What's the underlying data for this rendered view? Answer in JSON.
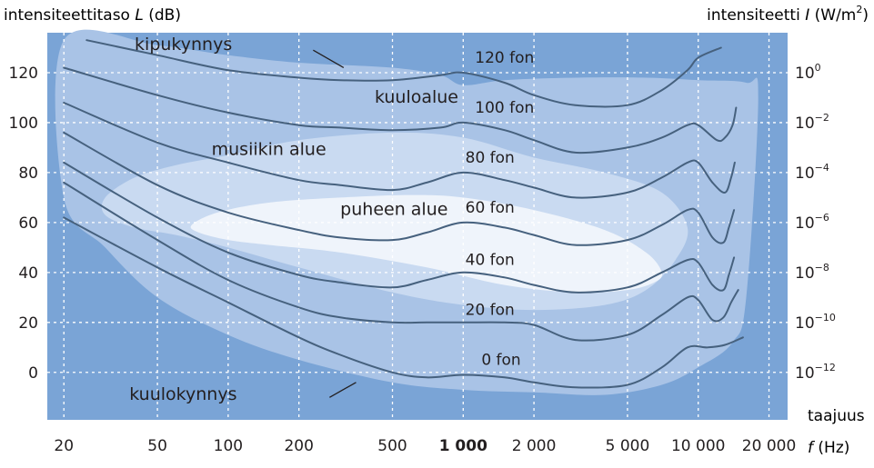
{
  "chart_data": {
    "type": "line",
    "left_axis_title": {
      "prefix": "intensiteettitaso ",
      "symbol": "L",
      "unit": " (dB)"
    },
    "right_axis_title": {
      "prefix": "intensiteetti ",
      "symbol": "I",
      "unit_open": " (W/m",
      "unit_exp": "2",
      "unit_close": ")"
    },
    "x_axis_title": {
      "line1": "taajuus",
      "symbol": "f",
      "unit": " (Hz)"
    },
    "x_scale": "log",
    "xlim": [
      17,
      24000
    ],
    "ylim": [
      -19,
      136
    ],
    "grid": true,
    "x_ticks": [
      {
        "value": 20,
        "label": "20"
      },
      {
        "value": 50,
        "label": "50"
      },
      {
        "value": 100,
        "label": "100"
      },
      {
        "value": 200,
        "label": "200"
      },
      {
        "value": 500,
        "label": "500"
      },
      {
        "value": 1000,
        "label": "1 000",
        "bold": true
      },
      {
        "value": 2000,
        "label": "2 000"
      },
      {
        "value": 5000,
        "label": "5 000"
      },
      {
        "value": 10000,
        "label": "10 000"
      },
      {
        "value": 20000,
        "label": "20 000"
      }
    ],
    "y_ticks": [
      {
        "value": 0,
        "label": "0"
      },
      {
        "value": 20,
        "label": "20"
      },
      {
        "value": 40,
        "label": "40"
      },
      {
        "value": 60,
        "label": "60"
      },
      {
        "value": 80,
        "label": "80"
      },
      {
        "value": 100,
        "label": "100"
      },
      {
        "value": 120,
        "label": "120"
      }
    ],
    "right_ticks": [
      {
        "value": 120,
        "base": "10",
        "exp": "0"
      },
      {
        "value": 100,
        "base": "10",
        "exp": "−2"
      },
      {
        "value": 80,
        "base": "10",
        "exp": "−4"
      },
      {
        "value": 60,
        "base": "10",
        "exp": "−6"
      },
      {
        "value": 40,
        "base": "10",
        "exp": "−8"
      },
      {
        "value": 20,
        "base": "10",
        "exp": "−10"
      },
      {
        "value": 0,
        "base": "10",
        "exp": "−12"
      }
    ],
    "regions": [
      {
        "label": "kuuloalue",
        "color": "#a9c3e6",
        "label_at": [
          420,
          108
        ],
        "boundary": [
          [
            20,
            133
          ],
          [
            50,
            131
          ],
          [
            100,
            127
          ],
          [
            200,
            124
          ],
          [
            500,
            122
          ],
          [
            800,
            119
          ],
          [
            1000,
            115
          ],
          [
            1500,
            117
          ],
          [
            3000,
            118
          ],
          [
            6000,
            118
          ],
          [
            10000,
            117
          ],
          [
            16000,
            116
          ],
          [
            18000,
            110
          ],
          [
            16000,
            30
          ],
          [
            14000,
            12
          ],
          [
            10000,
            2
          ],
          [
            7000,
            -5
          ],
          [
            4000,
            -9
          ],
          [
            2000,
            -8
          ],
          [
            1000,
            -7
          ],
          [
            500,
            -4
          ],
          [
            200,
            5
          ],
          [
            100,
            15
          ],
          [
            50,
            30
          ],
          [
            30,
            50
          ],
          [
            20,
            70
          ]
        ]
      },
      {
        "label": "musiikin alue",
        "color": "#c9daf1",
        "label_at": [
          85,
          87
        ],
        "boundary": [
          [
            30,
            70
          ],
          [
            40,
            78
          ],
          [
            60,
            83
          ],
          [
            100,
            87
          ],
          [
            200,
            93
          ],
          [
            500,
            96
          ],
          [
            1000,
            94
          ],
          [
            2000,
            86
          ],
          [
            4000,
            80
          ],
          [
            7000,
            72
          ],
          [
            9000,
            58
          ],
          [
            8000,
            45
          ],
          [
            6000,
            33
          ],
          [
            4000,
            27
          ],
          [
            2000,
            25
          ],
          [
            1000,
            27
          ],
          [
            500,
            32
          ],
          [
            200,
            42
          ],
          [
            100,
            50
          ],
          [
            60,
            55
          ],
          [
            40,
            58
          ],
          [
            30,
            63
          ]
        ]
      },
      {
        "label": "puheen alue",
        "color": "#eff4fb",
        "label_at": [
          300,
          63
        ],
        "boundary": [
          [
            70,
            59
          ],
          [
            90,
            64
          ],
          [
            150,
            68
          ],
          [
            300,
            70
          ],
          [
            600,
            71
          ],
          [
            1000,
            70
          ],
          [
            2000,
            65
          ],
          [
            4000,
            57
          ],
          [
            6000,
            48
          ],
          [
            7000,
            40
          ],
          [
            6500,
            36
          ],
          [
            5000,
            33
          ],
          [
            3000,
            32
          ],
          [
            1500,
            35
          ],
          [
            700,
            42
          ],
          [
            300,
            48
          ],
          [
            150,
            51
          ],
          [
            100,
            53
          ],
          [
            75,
            56
          ]
        ]
      }
    ],
    "series": [
      {
        "name": "120 fon",
        "label_at": [
          1500,
          124
        ],
        "points": [
          [
            25,
            133
          ],
          [
            50,
            127
          ],
          [
            100,
            121
          ],
          [
            200,
            118
          ],
          [
            300,
            117
          ],
          [
            500,
            117
          ],
          [
            800,
            119
          ],
          [
            1000,
            120
          ],
          [
            1500,
            116
          ],
          [
            2000,
            111
          ],
          [
            3000,
            107
          ],
          [
            5000,
            107
          ],
          [
            7000,
            113
          ],
          [
            9000,
            121
          ],
          [
            10000,
            126
          ],
          [
            12500,
            130
          ]
        ]
      },
      {
        "name": "100 fon",
        "label_at": [
          1500,
          104
        ],
        "points": [
          [
            20,
            122
          ],
          [
            50,
            111
          ],
          [
            100,
            104
          ],
          [
            200,
            99
          ],
          [
            300,
            98
          ],
          [
            500,
            97
          ],
          [
            800,
            98
          ],
          [
            1000,
            100
          ],
          [
            1500,
            97
          ],
          [
            2000,
            93
          ],
          [
            3000,
            88
          ],
          [
            5000,
            90
          ],
          [
            7000,
            94
          ],
          [
            9000,
            99
          ],
          [
            10000,
            99
          ],
          [
            12000,
            93
          ],
          [
            13000,
            94
          ],
          [
            14000,
            99
          ],
          [
            14500,
            106
          ]
        ]
      },
      {
        "name": "80 fon",
        "label_at": [
          1300,
          84
        ],
        "points": [
          [
            20,
            108
          ],
          [
            50,
            92
          ],
          [
            100,
            84
          ],
          [
            200,
            77
          ],
          [
            300,
            75
          ],
          [
            500,
            73
          ],
          [
            700,
            76
          ],
          [
            1000,
            80
          ],
          [
            1500,
            77
          ],
          [
            2000,
            74
          ],
          [
            3000,
            70
          ],
          [
            5000,
            72
          ],
          [
            7000,
            78
          ],
          [
            9000,
            84
          ],
          [
            10000,
            84
          ],
          [
            11500,
            76
          ],
          [
            13000,
            72
          ],
          [
            13800,
            78
          ],
          [
            14300,
            84
          ]
        ]
      },
      {
        "name": "60 fon",
        "label_at": [
          1300,
          64
        ],
        "points": [
          [
            20,
            96
          ],
          [
            50,
            75
          ],
          [
            100,
            64
          ],
          [
            200,
            57
          ],
          [
            300,
            54
          ],
          [
            500,
            53
          ],
          [
            700,
            56
          ],
          [
            1000,
            60
          ],
          [
            1500,
            58
          ],
          [
            2000,
            55
          ],
          [
            3000,
            51
          ],
          [
            5000,
            53
          ],
          [
            7000,
            59
          ],
          [
            9000,
            65
          ],
          [
            10000,
            64
          ],
          [
            11500,
            54
          ],
          [
            12800,
            52
          ],
          [
            13500,
            58
          ],
          [
            14200,
            65
          ]
        ]
      },
      {
        "name": "40 fon",
        "label_at": [
          1300,
          43
        ],
        "points": [
          [
            20,
            84
          ],
          [
            50,
            62
          ],
          [
            100,
            48
          ],
          [
            200,
            39
          ],
          [
            300,
            36
          ],
          [
            500,
            34
          ],
          [
            700,
            37
          ],
          [
            1000,
            40
          ],
          [
            1500,
            38
          ],
          [
            2000,
            35
          ],
          [
            3000,
            32
          ],
          [
            5000,
            34
          ],
          [
            7000,
            40
          ],
          [
            9000,
            45
          ],
          [
            10000,
            44
          ],
          [
            11500,
            35
          ],
          [
            12800,
            33
          ],
          [
            13500,
            39
          ],
          [
            14200,
            46
          ]
        ]
      },
      {
        "name": "20 fon",
        "label_at": [
          1300,
          23
        ],
        "points": [
          [
            20,
            76
          ],
          [
            50,
            53
          ],
          [
            100,
            37
          ],
          [
            200,
            26
          ],
          [
            300,
            22
          ],
          [
            500,
            20
          ],
          [
            700,
            20
          ],
          [
            1000,
            20
          ],
          [
            1500,
            20
          ],
          [
            2000,
            19
          ],
          [
            3000,
            13
          ],
          [
            5000,
            15
          ],
          [
            7000,
            23
          ],
          [
            9000,
            30
          ],
          [
            10000,
            29
          ],
          [
            11500,
            21
          ],
          [
            12800,
            22
          ],
          [
            13800,
            28
          ],
          [
            14800,
            33
          ]
        ]
      },
      {
        "name": "0 fon",
        "label_at": [
          1450,
          3
        ],
        "points": [
          [
            20,
            62
          ],
          [
            50,
            42
          ],
          [
            100,
            28
          ],
          [
            200,
            14
          ],
          [
            300,
            7
          ],
          [
            500,
            0
          ],
          [
            700,
            -2
          ],
          [
            1000,
            -1
          ],
          [
            1500,
            -2
          ],
          [
            2000,
            -4
          ],
          [
            3000,
            -6
          ],
          [
            5000,
            -5
          ],
          [
            7000,
            2
          ],
          [
            9000,
            10
          ],
          [
            11000,
            10
          ],
          [
            13000,
            11
          ],
          [
            15500,
            14
          ]
        ]
      }
    ],
    "annotations": [
      {
        "text": "kipukynnys",
        "label_at": [
          40,
          129
        ],
        "anchor": "start",
        "line": [
          [
            230,
            129
          ],
          [
            310,
            122
          ]
        ]
      },
      {
        "text": "kuulokynnys",
        "label_at": [
          38,
          -11
        ],
        "anchor": "start",
        "line": [
          [
            270,
            -10
          ],
          [
            350,
            -4
          ]
        ]
      }
    ]
  },
  "colors": {
    "panel": "#7aa4d6",
    "grid": "#ffffff",
    "curve": "#46617e",
    "text": "#231f20"
  }
}
